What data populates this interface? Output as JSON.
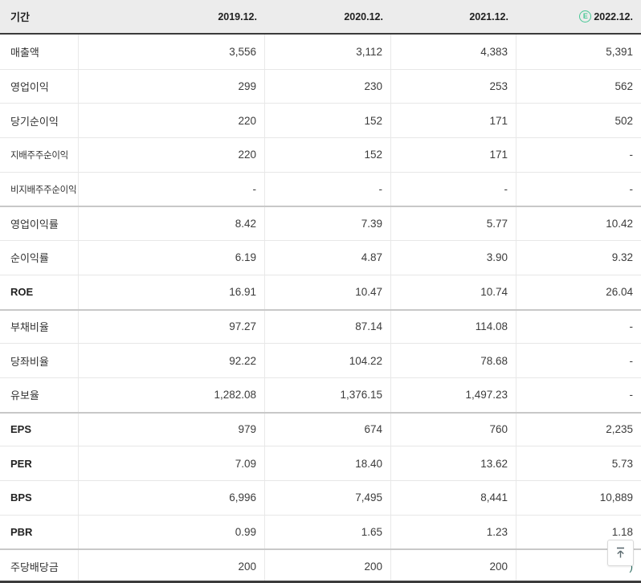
{
  "table": {
    "corner_label": "기간",
    "columns": [
      "2019.12.",
      "2020.12.",
      "2021.12.",
      "2022.12."
    ],
    "estimate_column_index": 3,
    "estimate_icon": "E",
    "rows": [
      {
        "label": "매출액",
        "values": [
          "3,556",
          "3,112",
          "4,383",
          "5,391"
        ]
      },
      {
        "label": "영업이익",
        "values": [
          "299",
          "230",
          "253",
          "562"
        ]
      },
      {
        "label": "당기순이익",
        "values": [
          "220",
          "152",
          "171",
          "502"
        ]
      },
      {
        "label": "지배주주순이익",
        "values": [
          "220",
          "152",
          "171",
          "-"
        ]
      },
      {
        "label": "비지배주주순이익",
        "values": [
          "-",
          "-",
          "-",
          "-"
        ]
      },
      {
        "label": "영업이익률",
        "values": [
          "8.42",
          "7.39",
          "5.77",
          "10.42"
        ],
        "group_start": true
      },
      {
        "label": "순이익률",
        "values": [
          "6.19",
          "4.87",
          "3.90",
          "9.32"
        ]
      },
      {
        "label": "ROE",
        "values": [
          "16.91",
          "10.47",
          "10.74",
          "26.04"
        ]
      },
      {
        "label": "부채비율",
        "values": [
          "97.27",
          "87.14",
          "114.08",
          "-"
        ],
        "group_start": true
      },
      {
        "label": "당좌비율",
        "values": [
          "92.22",
          "104.22",
          "78.68",
          "-"
        ]
      },
      {
        "label": "유보율",
        "values": [
          "1,282.08",
          "1,376.15",
          "1,497.23",
          "-"
        ]
      },
      {
        "label": "EPS",
        "values": [
          "979",
          "674",
          "760",
          "2,235"
        ],
        "group_start": true
      },
      {
        "label": "PER",
        "values": [
          "7.09",
          "18.40",
          "13.62",
          "5.73"
        ]
      },
      {
        "label": "BPS",
        "values": [
          "6,996",
          "7,495",
          "8,441",
          "10,889"
        ]
      },
      {
        "label": "PBR",
        "values": [
          "0.99",
          "1.65",
          "1.23",
          "1.18"
        ]
      },
      {
        "label": "주당배당금",
        "values": [
          "200",
          "200",
          "200",
          ")"
        ],
        "group_start": true,
        "last_value_occluded": true
      }
    ]
  },
  "scroll_top_button": {
    "tooltip_glyph": "↑"
  },
  "colors": {
    "estimate_accent": "#47c795",
    "header_border": "#3b3b3b",
    "group_separator": "#c8c8c8",
    "row_separator": "#e7e7e7",
    "page_background": "#ececec",
    "arrow_icon": "#5c6b70"
  }
}
